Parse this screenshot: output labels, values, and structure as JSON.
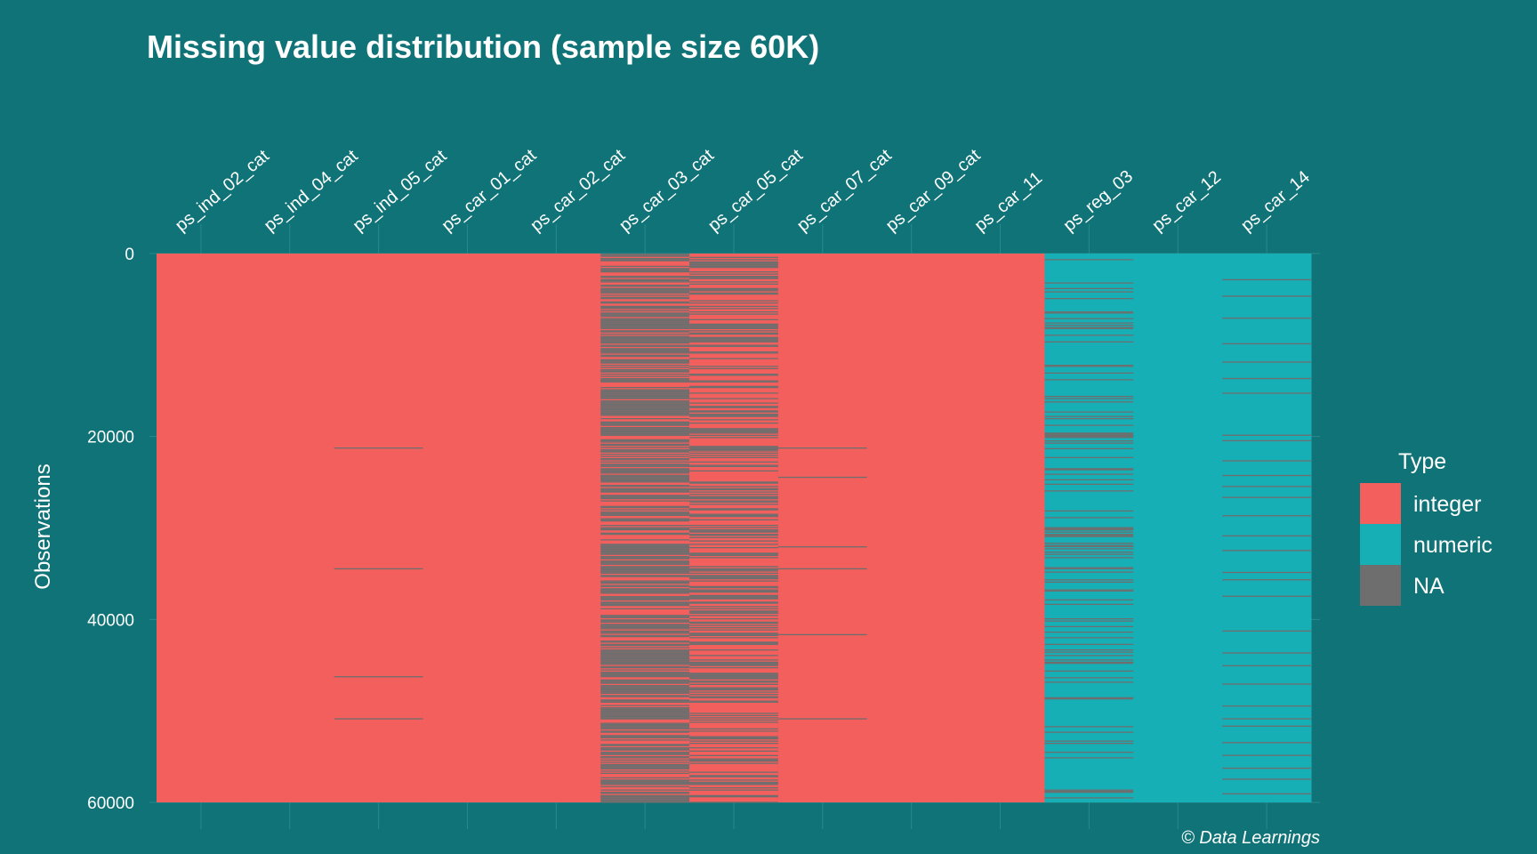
{
  "chart_data": {
    "type": "heatmap",
    "title": "Missing value distribution (sample size 60K)",
    "ylabel": "Observations",
    "caption": "© Data Learnings",
    "ylim": [
      0,
      60000
    ],
    "y_ticks": [
      0,
      20000,
      40000,
      60000
    ],
    "y_tick_labels": [
      "0",
      "20000",
      "40000",
      "60000"
    ],
    "grid": "on",
    "legend_position": "right",
    "legend": {
      "title": "Type",
      "entries": [
        {
          "label": "integer",
          "color": "#F25F5C"
        },
        {
          "label": "numeric",
          "color": "#16AFB5"
        },
        {
          "label": "NA",
          "color": "#6E6E6E"
        }
      ]
    },
    "colors": {
      "background": "#107377",
      "integer": "#F25F5C",
      "numeric": "#16AFB5",
      "na": "#6E6E6E"
    },
    "columns": [
      {
        "name": "ps_ind_02_cat",
        "type": "integer",
        "missing_rows": []
      },
      {
        "name": "ps_ind_04_cat",
        "type": "integer",
        "missing_rows": []
      },
      {
        "name": "ps_ind_05_cat",
        "type": "integer",
        "missing_rows": [
          21200,
          34400,
          46200,
          50800
        ]
      },
      {
        "name": "ps_car_01_cat",
        "type": "integer",
        "missing_rows": []
      },
      {
        "name": "ps_car_02_cat",
        "type": "integer",
        "missing_rows": []
      },
      {
        "name": "ps_car_03_cat",
        "type": "integer",
        "missing_rows": [],
        "na_fraction": 0.69
      },
      {
        "name": "ps_car_05_cat",
        "type": "integer",
        "missing_rows": [],
        "na_fraction": 0.45
      },
      {
        "name": "ps_car_07_cat",
        "type": "integer",
        "missing_rows": [
          21200,
          24400,
          32000,
          34400,
          41600,
          50800
        ]
      },
      {
        "name": "ps_car_09_cat",
        "type": "integer",
        "missing_rows": []
      },
      {
        "name": "ps_car_11",
        "type": "integer",
        "missing_rows": []
      },
      {
        "name": "ps_reg_03",
        "type": "numeric",
        "missing_rows": [],
        "na_fraction": 0.18
      },
      {
        "name": "ps_car_12",
        "type": "numeric",
        "missing_rows": []
      },
      {
        "name": "ps_car_14",
        "type": "numeric",
        "missing_rows": [
          2800,
          4600,
          7000,
          9800,
          11800,
          13600,
          15200,
          19800,
          20400,
          22600,
          24200,
          25400,
          26600,
          28600,
          30800,
          32400,
          34800,
          35600,
          37400,
          41200,
          43600,
          45000,
          47000,
          49400,
          50800,
          51600,
          53400,
          54800,
          56200,
          57400,
          59000
        ]
      }
    ]
  }
}
